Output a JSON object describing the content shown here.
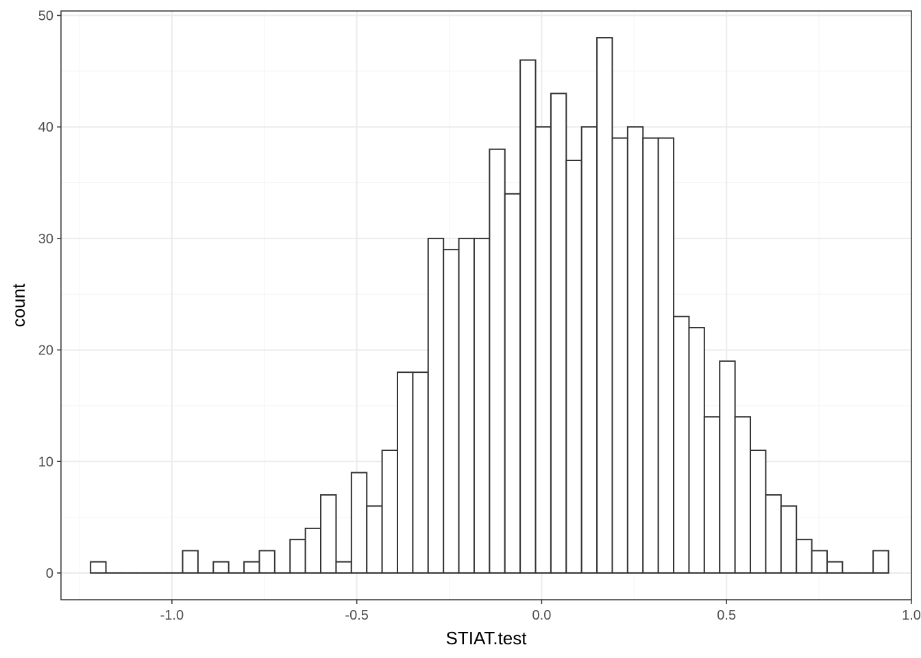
{
  "chart_data": {
    "type": "bar",
    "subtype": "histogram",
    "title": "",
    "xlabel": "STIAT.test",
    "ylabel": "count",
    "xlim": [
      -1.3,
      1.0
    ],
    "ylim": [
      -2.4,
      50.4
    ],
    "x_ticks": [
      -1.0,
      -0.5,
      0.0,
      0.5,
      1.0
    ],
    "x_tick_labels": [
      "-1.0",
      "-0.5",
      "0.0",
      "0.5",
      "1.0"
    ],
    "y_ticks": [
      0,
      10,
      20,
      30,
      40,
      50
    ],
    "y_tick_labels": [
      "0",
      "10",
      "20",
      "30",
      "40",
      "50"
    ],
    "bin_start": -1.22,
    "bin_width": 0.0415,
    "values": [
      1,
      0,
      0,
      0,
      0,
      0,
      2,
      0,
      1,
      0,
      1,
      2,
      0,
      3,
      4,
      7,
      1,
      9,
      6,
      11,
      18,
      18,
      30,
      29,
      30,
      30,
      38,
      34,
      46,
      40,
      43,
      37,
      40,
      48,
      39,
      40,
      39,
      39,
      23,
      22,
      14,
      19,
      14,
      11,
      7,
      6,
      3,
      2,
      1,
      0,
      0,
      2
    ],
    "grid": true,
    "theme": "bw",
    "colors": {
      "bar_fill": "#ffffff",
      "bar_stroke": "#333333",
      "grid_major": "#ebebeb",
      "grid_minor": "#f4f4f4",
      "panel_border": "#333333"
    }
  }
}
